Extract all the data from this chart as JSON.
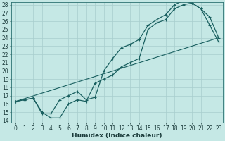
{
  "xlabel": "Humidex (Indice chaleur)",
  "bg_color": "#c5e8e5",
  "grid_color": "#a8cece",
  "line_color": "#1a6060",
  "line1_x": [
    0,
    1,
    2,
    3,
    4,
    5,
    6,
    7,
    8,
    9,
    10,
    11,
    12,
    13,
    14,
    15,
    16,
    17,
    18,
    19,
    20,
    21,
    22,
    23
  ],
  "line1_y": [
    16.3,
    16.5,
    16.7,
    15.0,
    14.3,
    14.3,
    16.0,
    16.5,
    16.3,
    18.5,
    19.0,
    19.5,
    20.5,
    21.0,
    21.5,
    25.0,
    25.8,
    26.2,
    27.5,
    28.0,
    28.2,
    27.5,
    25.5,
    23.5
  ],
  "line2_x": [
    0,
    1,
    2,
    3,
    4,
    5,
    6,
    7,
    8,
    9,
    10,
    11,
    12,
    13,
    14,
    15,
    16,
    17,
    18,
    19,
    20,
    21,
    22,
    23
  ],
  "line2_y": [
    16.3,
    16.5,
    16.7,
    14.8,
    14.8,
    16.5,
    17.0,
    17.5,
    16.5,
    16.8,
    20.0,
    21.5,
    22.8,
    23.2,
    23.8,
    25.5,
    26.2,
    26.8,
    28.0,
    28.5,
    28.2,
    27.5,
    26.5,
    24.0
  ],
  "line3_x": [
    0,
    23
  ],
  "line3_y": [
    16.3,
    24.0
  ],
  "ylim": [
    14,
    28
  ],
  "xlim": [
    -0.5,
    23.5
  ],
  "yticks": [
    14,
    15,
    16,
    17,
    18,
    19,
    20,
    21,
    22,
    23,
    24,
    25,
    26,
    27,
    28
  ],
  "xticks": [
    0,
    1,
    2,
    3,
    4,
    5,
    6,
    7,
    8,
    9,
    10,
    11,
    12,
    13,
    14,
    15,
    16,
    17,
    18,
    19,
    20,
    21,
    22,
    23
  ],
  "tick_fontsize": 5.5,
  "xlabel_fontsize": 6.5
}
